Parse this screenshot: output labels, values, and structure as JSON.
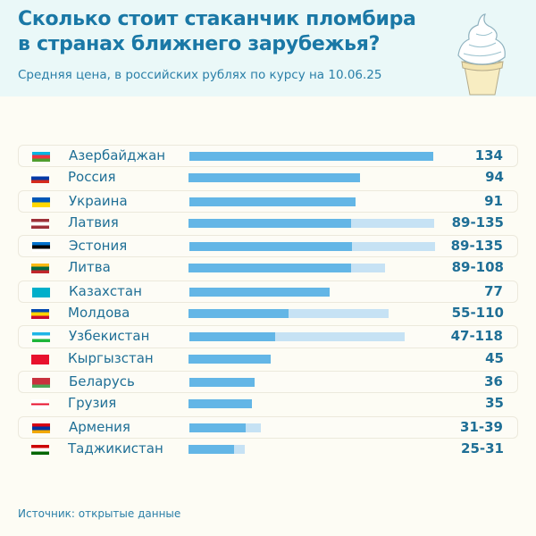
{
  "title_line1": "Сколько стоит стаканчик пломбира",
  "title_line2": "в странах ближнего зарубежья?",
  "subtitle": "Средняя цена, в российских рублях по курсу на 10.06.25",
  "source": "Источник: открытые данные",
  "colors": {
    "bar_min": "#63b6e6",
    "bar_range": "#c6e2f4",
    "text": "#1f6f96"
  },
  "chart_data": {
    "type": "bar",
    "orientation": "horizontal",
    "categories": [
      "Азербайджан",
      "Россия",
      "Украина",
      "Латвия",
      "Эстония",
      "Литва",
      "Казахстан",
      "Молдова",
      "Узбекистан",
      "Кыргызстан",
      "Беларусь",
      "Грузия",
      "Армения",
      "Таджикистан"
    ],
    "labels": [
      "134",
      "94",
      "91",
      "89-135",
      "89-135",
      "89-108",
      "77",
      "55-110",
      "47-118",
      "45",
      "36",
      "35",
      "31-39",
      "25-31"
    ],
    "series": [
      {
        "values": [
          134,
          94,
          91,
          89,
          89,
          89,
          77,
          55,
          47,
          45,
          36,
          35,
          31,
          25
        ]
      },
      {
        "values": [
          134,
          94,
          91,
          135,
          135,
          108,
          77,
          110,
          118,
          45,
          36,
          35,
          39,
          31
        ]
      }
    ],
    "flags": [
      [
        "#00b5e2",
        "#ef3340",
        "#509e2f"
      ],
      [
        "#ffffff",
        "#0039a6",
        "#d52b1e"
      ],
      [
        "#0057b7",
        "#ffd700"
      ],
      [
        "#9e3039",
        "#ffffff",
        "#9e3039"
      ],
      [
        "#0072ce",
        "#000000",
        "#ffffff"
      ],
      [
        "#fdb913",
        "#006a44",
        "#c1272d"
      ],
      [
        "#00afca"
      ],
      [
        "#0046ae",
        "#ffd200",
        "#cc092f"
      ],
      [
        "#1eb5e6",
        "#ffffff",
        "#1eb53a"
      ],
      [
        "#e8112d"
      ],
      [
        "#c8313e",
        "#c8313e",
        "#4aa657"
      ],
      [
        "#ffffff"
      ],
      [
        "#d90012",
        "#0033a0",
        "#f2a800"
      ],
      [
        "#cc0000",
        "#ffffff",
        "#006600"
      ]
    ]
  }
}
